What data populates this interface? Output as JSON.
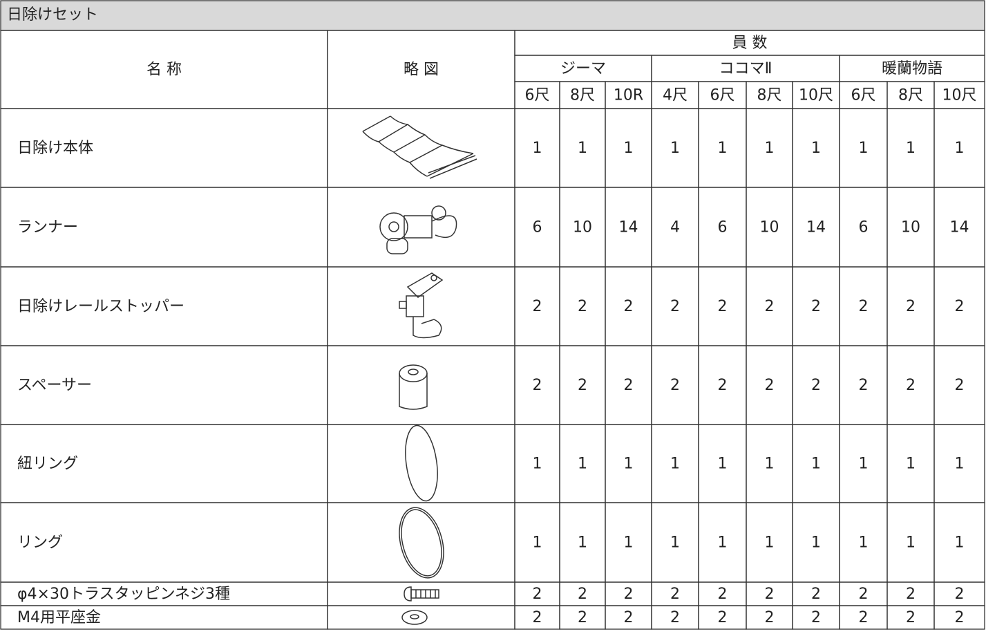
{
  "header": {
    "title": "日除けセット"
  },
  "table": {
    "columns": {
      "name": "名 称",
      "sketch": "略 図",
      "quantity": "員 数",
      "groups": [
        {
          "name": "ジーマ",
          "sizes": [
            "6尺",
            "8尺",
            "10R"
          ]
        },
        {
          "name": "ココマⅡ",
          "sizes": [
            "4尺",
            "6尺",
            "8尺",
            "10尺"
          ]
        },
        {
          "name": "暖蘭物語",
          "sizes": [
            "6尺",
            "8尺",
            "10尺"
          ]
        }
      ]
    },
    "rows": [
      {
        "name": "日除け本体",
        "values": [
          1,
          1,
          1,
          1,
          1,
          1,
          1,
          1,
          1,
          1
        ]
      },
      {
        "name": "ランナー",
        "values": [
          6,
          10,
          14,
          4,
          6,
          10,
          14,
          6,
          10,
          14
        ]
      },
      {
        "name": "日除けレールストッパー",
        "values": [
          2,
          2,
          2,
          2,
          2,
          2,
          2,
          2,
          2,
          2
        ]
      },
      {
        "name": "スペーサー",
        "values": [
          2,
          2,
          2,
          2,
          2,
          2,
          2,
          2,
          2,
          2
        ]
      },
      {
        "name": "紐リング",
        "values": [
          1,
          1,
          1,
          1,
          1,
          1,
          1,
          1,
          1,
          1
        ]
      },
      {
        "name": "リング",
        "values": [
          1,
          1,
          1,
          1,
          1,
          1,
          1,
          1,
          1,
          1
        ]
      },
      {
        "name": "φ4×30トラスタッピンネジ3種",
        "values": [
          2,
          2,
          2,
          2,
          2,
          2,
          2,
          2,
          2,
          2
        ]
      },
      {
        "name": "M4用平座金",
        "values": [
          2,
          2,
          2,
          2,
          2,
          2,
          2,
          2,
          2,
          2
        ]
      }
    ]
  }
}
